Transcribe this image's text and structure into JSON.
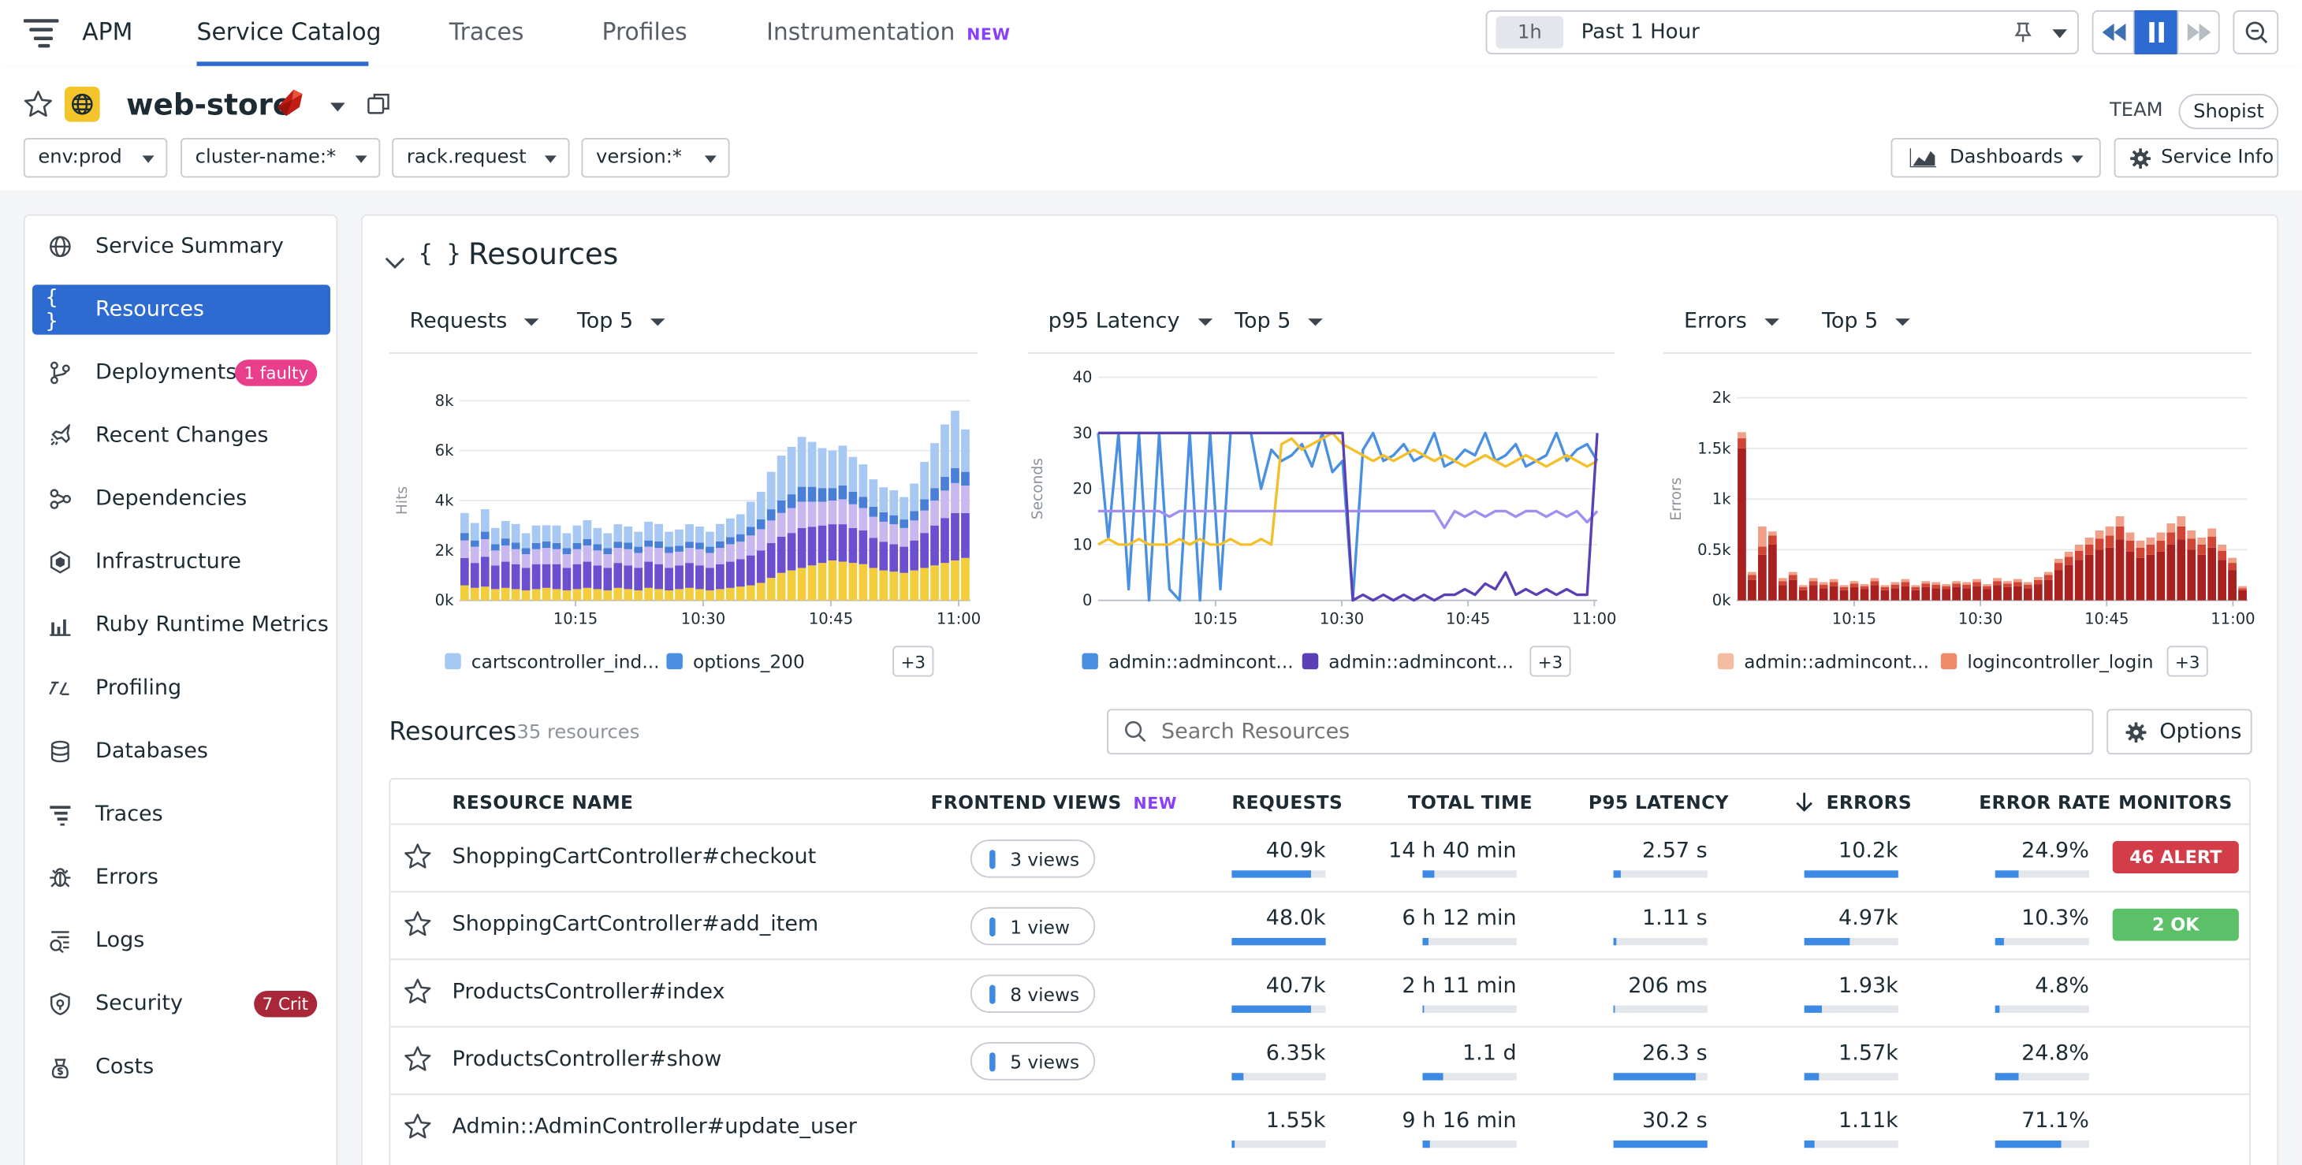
{
  "nav": {
    "app": "APM",
    "tabs": [
      {
        "label": "Service Catalog",
        "active": true
      },
      {
        "label": "Traces"
      },
      {
        "label": "Profiles"
      },
      {
        "label": "Instrumentation",
        "badge": "NEW"
      }
    ]
  },
  "time": {
    "short": "1h",
    "label": "Past 1 Hour"
  },
  "service": {
    "name": "web-store",
    "team_label": "TEAM",
    "team": "Shopist",
    "filters": [
      "env:prod",
      "cluster-name:*",
      "rack.request",
      "version:*"
    ],
    "dashboards_label": "Dashboards",
    "service_info_label": "Service Info"
  },
  "sidebar": {
    "items": [
      {
        "label": "Service Summary",
        "icon": "globe-icon"
      },
      {
        "label": "Resources",
        "icon": "braces-icon",
        "active": true
      },
      {
        "label": "Deployments",
        "icon": "branch-icon",
        "badge": "1 faulty",
        "badge_color": "#e83e8c"
      },
      {
        "label": "Recent Changes",
        "icon": "rocket-icon"
      },
      {
        "label": "Dependencies",
        "icon": "dependencies-icon"
      },
      {
        "label": "Infrastructure",
        "icon": "hexagon-icon"
      },
      {
        "label": "Ruby Runtime Metrics",
        "icon": "bar-chart-icon"
      },
      {
        "label": "Profiling",
        "icon": "profiling-icon"
      },
      {
        "label": "Databases",
        "icon": "database-icon"
      },
      {
        "label": "Traces",
        "icon": "traces-icon"
      },
      {
        "label": "Errors",
        "icon": "bug-icon"
      },
      {
        "label": "Logs",
        "icon": "logs-icon"
      },
      {
        "label": "Security",
        "icon": "shield-icon",
        "badge": "7 Crit",
        "badge_color": "#a8283a"
      },
      {
        "label": "Costs",
        "icon": "costs-icon"
      }
    ]
  },
  "resources": {
    "section_title": "Resources",
    "list_title": "Resources",
    "count_label": "35 resources",
    "search_placeholder": "Search Resources",
    "options_label": "Options"
  },
  "charts": [
    {
      "metric": "Requests",
      "top": "Top 5",
      "ylabel": "Hits",
      "legend": [
        {
          "name": "cartscontroller_ind...",
          "color": "#a6c8f2"
        },
        {
          "name": "options_200",
          "color": "#4a90e2"
        }
      ],
      "more": "+3"
    },
    {
      "metric": "p95 Latency",
      "top": "Top 5",
      "ylabel": "Seconds",
      "legend": [
        {
          "name": "admin::admincont...",
          "color": "#4a90e2"
        },
        {
          "name": "admin::admincont...",
          "color": "#5b3fb5"
        }
      ],
      "more": "+3"
    },
    {
      "metric": "Errors",
      "top": "Top 5",
      "ylabel": "Errors",
      "legend": [
        {
          "name": "admin::admincont...",
          "color": "#f5bca4"
        },
        {
          "name": "logincontroller_login",
          "color": "#ef8a6a"
        }
      ],
      "more": "+3"
    }
  ],
  "chart_data": [
    {
      "type": "bar",
      "stacked": true,
      "ylabel": "Hits",
      "ylim": [
        0,
        8000
      ],
      "yticks": [
        "0k",
        "2k",
        "4k",
        "6k",
        "8k"
      ],
      "xticks": [
        "10:15",
        "10:30",
        "10:45",
        "11:00"
      ],
      "series": [
        {
          "color": "#f3cd3b",
          "values": [
            600,
            500,
            550,
            450,
            500,
            450,
            400,
            450,
            500,
            450,
            400,
            450,
            500,
            450,
            400,
            500,
            450,
            400,
            500,
            450,
            400,
            450,
            500,
            450,
            400,
            450,
            500,
            550,
            600,
            700,
            900,
            1100,
            1200,
            1300,
            1400,
            1500,
            1600,
            1550,
            1500,
            1450,
            1300,
            1200,
            1150,
            1100,
            1200,
            1300,
            1400,
            1500,
            1600,
            1700
          ]
        },
        {
          "color": "#6b4fcf",
          "values": [
            1100,
            1000,
            1200,
            950,
            1050,
            1000,
            900,
            1000,
            950,
            1000,
            900,
            1000,
            1050,
            950,
            900,
            1000,
            950,
            900,
            1050,
            1000,
            900,
            950,
            1000,
            950,
            900,
            1000,
            1050,
            1100,
            1200,
            1300,
            1400,
            1450,
            1500,
            1600,
            1550,
            1500,
            1450,
            1500,
            1400,
            1350,
            1200,
            1150,
            1100,
            1050,
            1200,
            1400,
            1600,
            1800,
            1900,
            1800
          ]
        },
        {
          "color": "#c9b7ef",
          "values": [
            700,
            650,
            700,
            600,
            650,
            600,
            550,
            600,
            650,
            600,
            550,
            600,
            650,
            600,
            550,
            600,
            650,
            600,
            600,
            650,
            600,
            550,
            600,
            650,
            600,
            650,
            700,
            700,
            800,
            850,
            900,
            950,
            1000,
            1050,
            1000,
            950,
            950,
            1000,
            950,
            900,
            850,
            800,
            800,
            750,
            800,
            900,
            1000,
            1100,
            1200,
            1100
          ]
        },
        {
          "color": "#4a7fd8",
          "values": [
            300,
            250,
            300,
            250,
            280,
            260,
            240,
            250,
            260,
            250,
            240,
            250,
            260,
            250,
            240,
            250,
            260,
            250,
            250,
            260,
            250,
            240,
            250,
            260,
            250,
            260,
            280,
            300,
            350,
            400,
            450,
            500,
            550,
            600,
            600,
            550,
            500,
            550,
            500,
            450,
            400,
            380,
            360,
            340,
            380,
            450,
            500,
            550,
            600,
            550
          ]
        },
        {
          "color": "#a6c8f2",
          "values": [
            800,
            700,
            900,
            650,
            700,
            750,
            600,
            700,
            650,
            700,
            600,
            700,
            750,
            650,
            600,
            700,
            650,
            600,
            750,
            700,
            600,
            650,
            700,
            650,
            600,
            700,
            750,
            800,
            1000,
            1100,
            1500,
            1800,
            1900,
            2000,
            1800,
            1600,
            1500,
            1600,
            1400,
            1300,
            1100,
            1000,
            1000,
            900,
            1100,
            1500,
            1800,
            2100,
            2300,
            1700
          ]
        }
      ]
    },
    {
      "type": "line",
      "ylabel": "Seconds",
      "ylim": [
        0,
        40
      ],
      "yticks": [
        "0",
        "10",
        "20",
        "30",
        "40"
      ],
      "xticks": [
        "10:15",
        "10:30",
        "10:45",
        "11:00"
      ],
      "series": [
        {
          "color": "#4a90e2",
          "values": [
            30,
            11,
            30,
            2,
            30,
            0,
            30,
            2,
            0,
            30,
            0,
            30,
            2,
            30,
            30,
            30,
            20,
            27,
            25,
            26,
            28,
            24,
            30,
            23,
            25,
            0,
            27,
            30,
            25,
            26,
            28,
            25,
            26,
            30,
            24,
            25,
            27,
            26,
            30,
            25,
            26,
            28,
            24,
            25,
            26,
            30,
            25,
            27,
            28,
            25
          ]
        },
        {
          "color": "#f3c02c",
          "values": [
            10,
            11,
            10,
            10,
            11,
            10,
            10,
            10,
            11,
            10,
            11,
            10,
            10,
            11,
            10,
            10,
            11,
            10,
            28,
            29,
            27,
            28,
            29,
            30,
            28,
            27,
            26,
            25,
            26,
            25,
            26,
            27,
            26,
            25,
            26,
            25,
            24,
            25,
            26,
            25,
            24,
            25,
            26,
            25,
            24,
            25,
            26,
            25,
            24,
            25
          ]
        },
        {
          "color": "#a08ff0",
          "values": [
            16,
            16,
            16,
            16,
            16,
            16,
            16,
            15,
            16,
            16,
            16,
            16,
            16,
            16,
            16,
            16,
            16,
            16,
            16,
            16,
            16,
            16,
            16,
            16,
            16,
            16,
            16,
            16,
            16,
            16,
            16,
            16,
            16,
            16,
            13,
            16,
            15,
            16,
            15,
            16,
            16,
            15,
            16,
            16,
            15,
            16,
            15,
            16,
            14,
            16
          ]
        },
        {
          "color": "#5b3fb5",
          "values": [
            30,
            30,
            30,
            30,
            30,
            30,
            30,
            30,
            30,
            30,
            30,
            30,
            30,
            30,
            30,
            30,
            30,
            30,
            30,
            30,
            30,
            30,
            30,
            30,
            30,
            0,
            1,
            0,
            1,
            0,
            1,
            0,
            1,
            0,
            1,
            1,
            2,
            1,
            3,
            2,
            5,
            1,
            2,
            1,
            2,
            1,
            2,
            1,
            1,
            30
          ]
        }
      ]
    },
    {
      "type": "bar",
      "stacked": true,
      "ylabel": "Errors",
      "ylim": [
        0,
        2000
      ],
      "yticks": [
        "0k",
        "0.5k",
        "1k",
        "1.5k",
        "2k"
      ],
      "xticks": [
        "10:15",
        "10:30",
        "10:45",
        "11:00"
      ],
      "series": [
        {
          "color": "#a82020",
          "values": [
            1500,
            200,
            450,
            550,
            150,
            200,
            100,
            150,
            120,
            140,
            100,
            130,
            110,
            150,
            100,
            120,
            140,
            100,
            130,
            120,
            110,
            130,
            120,
            140,
            110,
            150,
            130,
            140,
            120,
            160,
            200,
            300,
            350,
            400,
            450,
            500,
            520,
            600,
            480,
            420,
            450,
            480,
            550,
            600,
            500,
            450,
            520,
            400,
            300,
            100
          ]
        },
        {
          "color": "#d04535",
          "values": [
            100,
            50,
            80,
            90,
            40,
            50,
            30,
            40,
            35,
            40,
            30,
            35,
            30,
            40,
            30,
            35,
            40,
            30,
            35,
            35,
            30,
            35,
            35,
            40,
            30,
            40,
            35,
            40,
            35,
            40,
            50,
            70,
            80,
            90,
            100,
            110,
            120,
            130,
            110,
            100,
            100,
            110,
            120,
            130,
            110,
            100,
            110,
            90,
            70,
            20
          ]
        },
        {
          "color": "#f0a088",
          "values": [
            60,
            30,
            200,
            40,
            30,
            30,
            20,
            30,
            25,
            30,
            20,
            25,
            20,
            30,
            20,
            25,
            30,
            20,
            25,
            25,
            20,
            25,
            25,
            30,
            20,
            30,
            25,
            30,
            25,
            30,
            30,
            40,
            50,
            60,
            70,
            80,
            90,
            100,
            80,
            70,
            70,
            80,
            90,
            100,
            80,
            70,
            80,
            60,
            50,
            20
          ]
        }
      ]
    }
  ],
  "table": {
    "headers": {
      "name": "RESOURCE NAME",
      "views": "FRONTEND VIEWS",
      "views_badge": "NEW",
      "requests": "REQUESTS",
      "total": "TOTAL TIME",
      "p95": "P95 LATENCY",
      "errors": "ERRORS",
      "rate": "ERROR RATE",
      "monitors": "MONITORS"
    },
    "rows": [
      {
        "name": "ShoppingCartController#checkout",
        "views": "3 views",
        "requests": "40.9k",
        "requests_pct": 85,
        "total": "14 h 40 min",
        "total_pct": 12,
        "p95": "2.57 s",
        "p95_pct": 8,
        "errors": "10.2k",
        "errors_pct": 100,
        "rate": "24.9%",
        "rate_pct": 25,
        "monitor": "46 ALERT",
        "monitor_color": "#d33d4a"
      },
      {
        "name": "ShoppingCartController#add_item",
        "views": "1 view",
        "requests": "48.0k",
        "requests_pct": 100,
        "total": "6 h 12 min",
        "total_pct": 6,
        "p95": "1.11 s",
        "p95_pct": 3,
        "errors": "4.97k",
        "errors_pct": 48,
        "rate": "10.3%",
        "rate_pct": 10,
        "monitor": "2 OK",
        "monitor_color": "#5cc068"
      },
      {
        "name": "ProductsController#index",
        "views": "8 views",
        "requests": "40.7k",
        "requests_pct": 85,
        "total": "2 h 11 min",
        "total_pct": 2,
        "p95": "206 ms",
        "p95_pct": 1,
        "errors": "1.93k",
        "errors_pct": 19,
        "rate": "4.8%",
        "rate_pct": 5
      },
      {
        "name": "ProductsController#show",
        "views": "5 views",
        "requests": "6.35k",
        "requests_pct": 13,
        "total": "1.1 d",
        "total_pct": 22,
        "p95": "26.3 s",
        "p95_pct": 87,
        "errors": "1.57k",
        "errors_pct": 15,
        "rate": "24.8%",
        "rate_pct": 25
      },
      {
        "name": "Admin::AdminController#update_user",
        "views": "",
        "requests": "1.55k",
        "requests_pct": 3,
        "total": "9 h 16 min",
        "total_pct": 8,
        "p95": "30.2 s",
        "p95_pct": 100,
        "errors": "1.11k",
        "errors_pct": 11,
        "rate": "71.1%",
        "rate_pct": 71
      }
    ]
  }
}
